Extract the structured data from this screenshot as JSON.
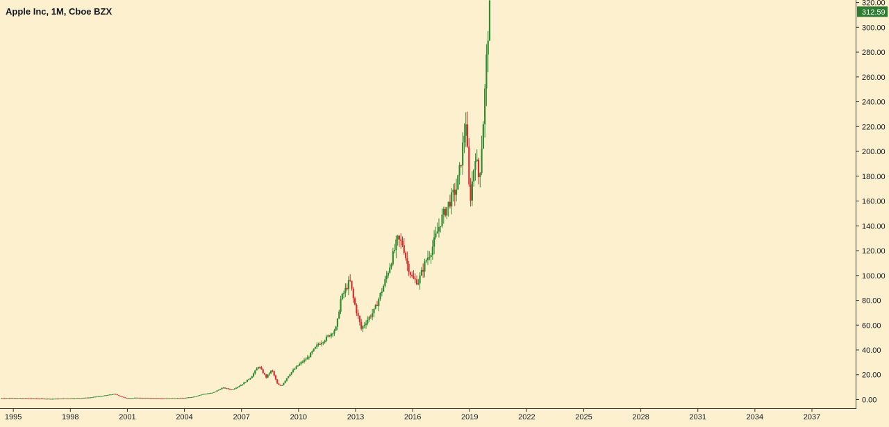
{
  "header": {
    "title": "Apple Inc, 1M, Cboe BZX"
  },
  "price_label": {
    "value": "312.59",
    "color": "#2e7d32"
  },
  "colors": {
    "up": "#2e8b2e",
    "down": "#d32f2f",
    "background": "#fdf0cf",
    "axis": "#333333"
  },
  "chart_data": {
    "type": "candlestick",
    "title": "Apple Inc, 1M, Cboe BZX",
    "ylim": [
      -7,
      322
    ],
    "xlim": [
      1994.3,
      2039.3
    ],
    "y_ticks": [
      0,
      20,
      40,
      60,
      80,
      100,
      120,
      140,
      160,
      180,
      200,
      220,
      240,
      260,
      280,
      300,
      320
    ],
    "y_tick_labels": [
      "0.00",
      "20.00",
      "40.00",
      "60.00",
      "80.00",
      "100.00",
      "120.00",
      "140.00",
      "160.00",
      "180.00",
      "200.00",
      "220.00",
      "240.00",
      "260.00",
      "280.00",
      "300.00",
      "320.00"
    ],
    "x_ticks": [
      1995,
      1998,
      2001,
      2004,
      2007,
      2010,
      2013,
      2016,
      2019,
      2022,
      2025,
      2028,
      2031,
      2034,
      2037
    ],
    "x_tick_labels": [
      "1995",
      "1998",
      "2001",
      "2004",
      "2007",
      "2010",
      "2013",
      "2016",
      "2019",
      "2022",
      "2025",
      "2028",
      "2031",
      "2034",
      "2037"
    ],
    "last_price": 312.59,
    "grid": false,
    "close_path": [
      [
        1994.3,
        1.1
      ],
      [
        1995.0,
        1.3
      ],
      [
        1996.0,
        0.9
      ],
      [
        1997.0,
        0.6
      ],
      [
        1998.0,
        0.9
      ],
      [
        1999.0,
        1.6
      ],
      [
        1999.9,
        3.5
      ],
      [
        2000.3,
        4.5
      ],
      [
        2000.9,
        1.2
      ],
      [
        2001.5,
        1.4
      ],
      [
        2002.0,
        1.3
      ],
      [
        2003.0,
        0.9
      ],
      [
        2004.0,
        1.3
      ],
      [
        2004.5,
        2.3
      ],
      [
        2005.0,
        4.5
      ],
      [
        2005.5,
        5.5
      ],
      [
        2006.0,
        9.5
      ],
      [
        2006.5,
        8.0
      ],
      [
        2007.0,
        12.0
      ],
      [
        2007.5,
        18.0
      ],
      [
        2007.9,
        27.0
      ],
      [
        2008.3,
        18.0
      ],
      [
        2008.6,
        24.0
      ],
      [
        2008.9,
        12.0
      ],
      [
        2009.1,
        11.0
      ],
      [
        2009.5,
        20.0
      ],
      [
        2010.0,
        28.0
      ],
      [
        2010.5,
        34.0
      ],
      [
        2011.0,
        44.0
      ],
      [
        2011.5,
        50.0
      ],
      [
        2012.0,
        58.0
      ],
      [
        2012.2,
        80.0
      ],
      [
        2012.7,
        96.0
      ],
      [
        2012.9,
        80.0
      ],
      [
        2013.3,
        57.0
      ],
      [
        2013.6,
        64.0
      ],
      [
        2014.0,
        72.0
      ],
      [
        2014.5,
        93.0
      ],
      [
        2015.0,
        118.0
      ],
      [
        2015.2,
        129.0
      ],
      [
        2015.5,
        125.0
      ],
      [
        2015.7,
        110.0
      ],
      [
        2016.0,
        97.0
      ],
      [
        2016.3,
        95.0
      ],
      [
        2016.7,
        112.0
      ],
      [
        2017.0,
        121.0
      ],
      [
        2017.5,
        145.0
      ],
      [
        2017.8,
        155.0
      ],
      [
        2018.3,
        170.0
      ],
      [
        2018.5,
        187.0
      ],
      [
        2018.8,
        225.0
      ],
      [
        2018.95,
        178.0
      ],
      [
        2019.0,
        157.0
      ],
      [
        2019.3,
        198.0
      ],
      [
        2019.5,
        176.0
      ],
      [
        2019.7,
        220.0
      ],
      [
        2019.8,
        248.0
      ],
      [
        2019.95,
        293.0
      ],
      [
        2020.05,
        312.59
      ]
    ]
  }
}
